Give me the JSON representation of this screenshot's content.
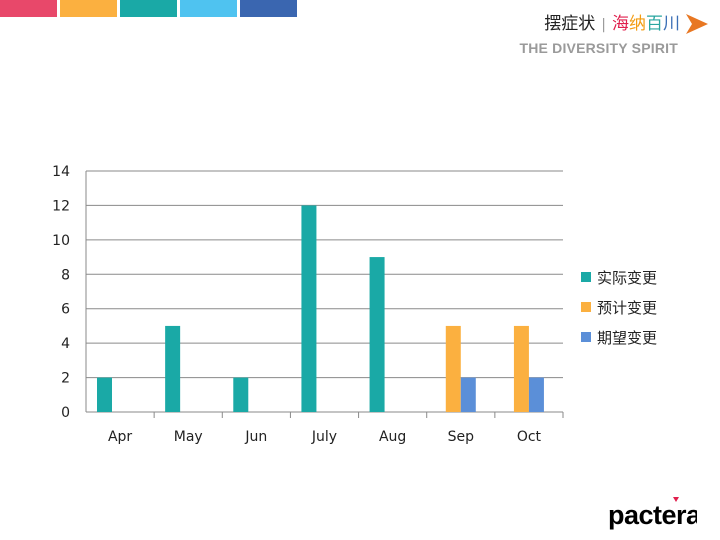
{
  "header": {
    "brand_name": "摆症状",
    "slogan_chars": [
      "海",
      "纳",
      "百",
      "川"
    ],
    "slogan_colors": [
      "#e01f4d",
      "#f39c12",
      "#2aa6a0",
      "#3b6fb6"
    ],
    "tagline": "THE DIVERSITY SPIRIT",
    "arrow_color": "#e87722"
  },
  "color_bars": [
    "#e8486a",
    "#fbb040",
    "#1aa9a6",
    "#4fc3f0",
    "#3a66b0"
  ],
  "logo": {
    "text": "pactera"
  },
  "chart_data": {
    "type": "bar",
    "categories": [
      "Apr",
      "May",
      "Jun",
      "July",
      "Aug",
      "Sep",
      "Oct"
    ],
    "series": [
      {
        "name": "实际变更",
        "color": "#1aa9a6",
        "values": [
          2,
          5,
          2,
          12,
          9,
          0,
          0
        ]
      },
      {
        "name": "预计变更",
        "color": "#fbb040",
        "values": [
          0,
          0,
          0,
          0,
          0,
          5,
          5
        ]
      },
      {
        "name": "期望变更",
        "color": "#5b8fd8",
        "values": [
          0,
          0,
          0,
          0,
          0,
          2,
          2
        ]
      }
    ],
    "y_ticks": [
      "0",
      "2",
      "4",
      "6",
      "8",
      "10",
      "12",
      "14"
    ],
    "ylim": [
      0,
      14
    ],
    "grid": true,
    "legend_position": "right"
  }
}
